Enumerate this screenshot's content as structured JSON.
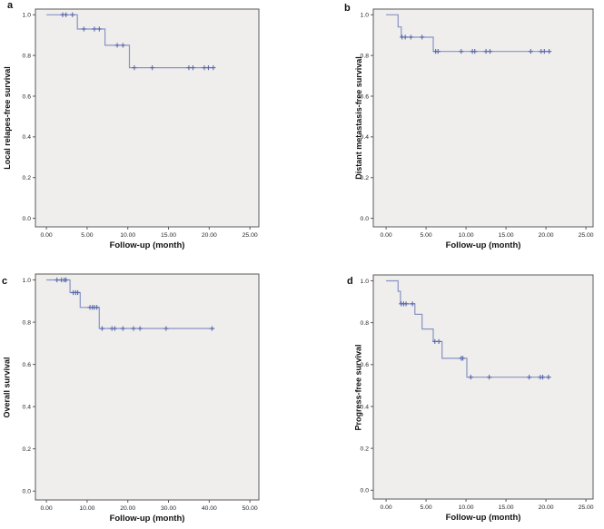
{
  "figure": {
    "background": "#ffffff",
    "plot_background": "#efeeec",
    "border_color": "#59595b",
    "tick_color": "#59595b",
    "text_color": "#262626"
  },
  "chart_data": [
    {
      "panel_label": "a",
      "type": "line",
      "subtype": "kaplan-meier-step",
      "title": "",
      "xlabel": "Follow-up (month)",
      "ylabel": "Local relapes-free survival",
      "xlim": [
        -1.35,
        26.1
      ],
      "ylim": [
        -0.042,
        1.028
      ],
      "grid": false,
      "legend": "none",
      "xticks": {
        "values": [
          0,
          5,
          10,
          15,
          20,
          25
        ],
        "labels": [
          "0.00",
          "5.00",
          "10.00",
          "15.00",
          "20.00",
          "25.00"
        ]
      },
      "yticks": {
        "values": [
          0,
          0.2,
          0.4,
          0.6,
          0.8,
          1.0
        ],
        "labels": [
          "0.0",
          "0.2",
          "0.4",
          "0.6",
          "0.8",
          "1.0"
        ]
      },
      "curve": {
        "start": [
          0,
          1.0
        ],
        "drops": [
          [
            3.8,
            0.93
          ],
          [
            7.2,
            0.85
          ],
          [
            10.2,
            0.74
          ]
        ],
        "end_x": 20.6
      },
      "censors": [
        [
          2.0,
          1.0
        ],
        [
          2.4,
          1.0
        ],
        [
          3.2,
          1.0
        ],
        [
          4.6,
          0.93
        ],
        [
          5.9,
          0.93
        ],
        [
          6.5,
          0.93
        ],
        [
          8.7,
          0.85
        ],
        [
          9.4,
          0.85
        ],
        [
          10.8,
          0.74
        ],
        [
          13.0,
          0.74
        ],
        [
          17.5,
          0.74
        ],
        [
          18.0,
          0.74
        ],
        [
          19.4,
          0.74
        ],
        [
          19.9,
          0.74
        ],
        [
          20.5,
          0.74
        ]
      ],
      "line_color": "#8793c5",
      "censor_color": "#5a69ad"
    },
    {
      "panel_label": "b",
      "type": "line",
      "subtype": "kaplan-meier-step",
      "title": "",
      "xlabel": "Follow-up (month)",
      "ylabel": "Distant metastasis-free survival",
      "xlim": [
        -1.6,
        25.9
      ],
      "ylim": [
        -0.042,
        1.028
      ],
      "grid": false,
      "legend": "none",
      "xticks": {
        "values": [
          0,
          5,
          10,
          15,
          20,
          25
        ],
        "labels": [
          "0.00",
          "5.00",
          "10.00",
          "15.00",
          "20.00",
          "25.00"
        ]
      },
      "yticks": {
        "values": [
          0,
          0.2,
          0.4,
          0.6,
          0.8,
          1.0
        ],
        "labels": [
          "0.0",
          "0.2",
          "0.4",
          "0.6",
          "0.8",
          "1.0"
        ]
      },
      "curve": {
        "start": [
          0,
          1.0
        ],
        "drops": [
          [
            1.5,
            0.94
          ],
          [
            1.9,
            0.89
          ],
          [
            5.9,
            0.82
          ]
        ],
        "end_x": 20.65
      },
      "censors": [
        [
          2.0,
          0.89
        ],
        [
          2.4,
          0.89
        ],
        [
          3.1,
          0.89
        ],
        [
          4.5,
          0.89
        ],
        [
          6.2,
          0.82
        ],
        [
          6.5,
          0.82
        ],
        [
          9.4,
          0.82
        ],
        [
          10.8,
          0.82
        ],
        [
          11.1,
          0.82
        ],
        [
          12.5,
          0.82
        ],
        [
          13.0,
          0.82
        ],
        [
          18.1,
          0.82
        ],
        [
          19.4,
          0.82
        ],
        [
          19.8,
          0.82
        ],
        [
          20.4,
          0.82
        ]
      ],
      "line_color": "#8793c5",
      "censor_color": "#5a69ad"
    },
    {
      "panel_label": "c",
      "type": "line",
      "subtype": "kaplan-meier-step",
      "title": "",
      "xlabel": "Follow-up (month)",
      "ylabel": "Overall survival",
      "xlim": [
        -2.7,
        52.2
      ],
      "ylim": [
        -0.042,
        1.028
      ],
      "grid": false,
      "legend": "none",
      "xticks": {
        "values": [
          0,
          10,
          20,
          30,
          40,
          50
        ],
        "labels": [
          "0.00",
          "10.00",
          "20.00",
          "30.00",
          "40.00",
          "50.00"
        ]
      },
      "yticks": {
        "values": [
          0,
          0.2,
          0.4,
          0.6,
          0.8,
          1.0
        ],
        "labels": [
          "0.0",
          "0.2",
          "0.4",
          "0.6",
          "0.8",
          "1.0"
        ]
      },
      "curve": {
        "start": [
          0,
          1.0
        ],
        "drops": [
          [
            5.8,
            0.94
          ],
          [
            8.3,
            0.87
          ],
          [
            13.0,
            0.77
          ]
        ],
        "end_x": 41.3
      },
      "censors": [
        [
          2.6,
          1.0
        ],
        [
          3.7,
          1.0
        ],
        [
          4.4,
          1.0
        ],
        [
          4.8,
          1.0
        ],
        [
          6.6,
          0.94
        ],
        [
          7.2,
          0.94
        ],
        [
          7.7,
          0.94
        ],
        [
          10.7,
          0.87
        ],
        [
          11.3,
          0.87
        ],
        [
          11.8,
          0.87
        ],
        [
          12.4,
          0.87
        ],
        [
          13.7,
          0.77
        ],
        [
          16.1,
          0.77
        ],
        [
          16.8,
          0.77
        ],
        [
          18.8,
          0.77
        ],
        [
          21.4,
          0.77
        ],
        [
          23.0,
          0.77
        ],
        [
          29.4,
          0.77
        ],
        [
          40.7,
          0.77
        ]
      ],
      "line_color": "#8793c5",
      "censor_color": "#5a69ad"
    },
    {
      "panel_label": "d",
      "type": "line",
      "subtype": "kaplan-meier-step",
      "title": "",
      "xlabel": "Follow-up (month)",
      "ylabel": "Progress-free survival",
      "xlim": [
        -1.6,
        25.9
      ],
      "ylim": [
        -0.042,
        1.028
      ],
      "grid": false,
      "legend": "none",
      "xticks": {
        "values": [
          0,
          5,
          10,
          15,
          20,
          25
        ],
        "labels": [
          "0.00",
          "5.00",
          "10.00",
          "15.00",
          "20.00",
          "25.00"
        ]
      },
      "yticks": {
        "values": [
          0,
          0.2,
          0.4,
          0.6,
          0.8,
          1.0
        ],
        "labels": [
          "0.0",
          "0.2",
          "0.4",
          "0.6",
          "0.8",
          "1.0"
        ]
      },
      "curve": {
        "start": [
          0,
          1.0
        ],
        "drops": [
          [
            1.5,
            0.95
          ],
          [
            1.8,
            0.89
          ],
          [
            3.6,
            0.84
          ],
          [
            4.5,
            0.77
          ],
          [
            5.9,
            0.71
          ],
          [
            7.0,
            0.63
          ],
          [
            10.1,
            0.54
          ]
        ],
        "end_x": 20.65
      },
      "censors": [
        [
          1.9,
          0.89
        ],
        [
          2.2,
          0.89
        ],
        [
          2.5,
          0.89
        ],
        [
          3.3,
          0.89
        ],
        [
          6.1,
          0.71
        ],
        [
          6.6,
          0.71
        ],
        [
          9.4,
          0.63
        ],
        [
          9.6,
          0.63
        ],
        [
          10.6,
          0.54
        ],
        [
          12.9,
          0.54
        ],
        [
          17.9,
          0.54
        ],
        [
          19.3,
          0.54
        ],
        [
          19.6,
          0.54
        ],
        [
          20.3,
          0.54
        ]
      ],
      "line_color": "#8793c5",
      "censor_color": "#5a69ad"
    }
  ]
}
